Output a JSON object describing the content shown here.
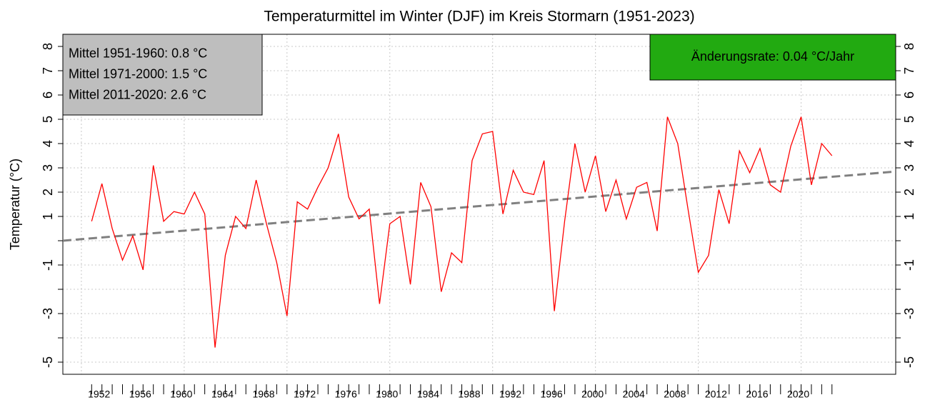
{
  "chart_data": {
    "type": "line",
    "title": "Temperaturmittel im Winter (DJF) im Kreis Stormarn (1951-2023)",
    "y_label": "Temperatur (°C)",
    "x": [
      1951,
      1952,
      1953,
      1954,
      1955,
      1956,
      1957,
      1958,
      1959,
      1960,
      1961,
      1962,
      1963,
      1964,
      1965,
      1966,
      1967,
      1968,
      1969,
      1970,
      1971,
      1972,
      1973,
      1974,
      1975,
      1976,
      1977,
      1978,
      1979,
      1980,
      1981,
      1982,
      1983,
      1984,
      1985,
      1986,
      1987,
      1988,
      1989,
      1990,
      1991,
      1992,
      1993,
      1994,
      1995,
      1996,
      1997,
      1998,
      1999,
      2000,
      2001,
      2002,
      2003,
      2004,
      2005,
      2006,
      2007,
      2008,
      2009,
      2010,
      2011,
      2012,
      2013,
      2014,
      2015,
      2016,
      2017,
      2018,
      2019,
      2020,
      2021,
      2022,
      2023
    ],
    "series": [
      {
        "name": "Temperatur",
        "color": "#ff0000",
        "values": [
          0.8,
          2.35,
          0.5,
          -0.8,
          0.2,
          -1.2,
          3.1,
          0.8,
          1.2,
          1.1,
          2.0,
          1.1,
          -4.4,
          -0.6,
          1.0,
          0.5,
          2.5,
          0.7,
          -0.9,
          -3.1,
          1.6,
          1.3,
          2.2,
          3.0,
          4.4,
          1.8,
          0.9,
          1.3,
          -2.6,
          0.7,
          1.0,
          -1.8,
          2.4,
          1.4,
          -2.1,
          -0.5,
          -0.9,
          3.3,
          4.4,
          4.5,
          1.1,
          2.9,
          2.0,
          1.9,
          3.3,
          -2.9,
          0.8,
          4.0,
          2.0,
          3.5,
          1.2,
          2.5,
          0.9,
          2.2,
          2.4,
          0.4,
          5.1,
          4.0,
          1.3,
          -1.3,
          -0.6,
          2.1,
          0.7,
          3.7,
          2.8,
          3.8,
          2.3,
          2.0,
          3.9,
          5.1,
          2.3,
          4.0,
          3.5
        ]
      }
    ],
    "trend": {
      "color": "#808080",
      "x": [
        1948.2,
        2029.2
      ],
      "values": [
        0.0,
        2.85
      ]
    },
    "xlim": [
      1948.2,
      2029.2
    ],
    "xticks": [
      1952,
      1956,
      1960,
      1964,
      1968,
      1972,
      1976,
      1980,
      1984,
      1988,
      1992,
      1996,
      2000,
      2004,
      2008,
      2012,
      2016,
      2020
    ],
    "minor_xticks": [
      1951,
      1952,
      1953,
      1954,
      1955,
      1956,
      1957,
      1958,
      1959,
      1960,
      1961,
      1962,
      1963,
      1964,
      1965,
      1966,
      1967,
      1968,
      1969,
      1970,
      1971,
      1972,
      1973,
      1974,
      1975,
      1976,
      1977,
      1978,
      1979,
      1980,
      1981,
      1982,
      1983,
      1984,
      1985,
      1986,
      1987,
      1988,
      1989,
      1990,
      1991,
      1992,
      1993,
      1994,
      1995,
      1996,
      1997,
      1998,
      1999,
      2000,
      2001,
      2002,
      2003,
      2004,
      2005,
      2006,
      2007,
      2008,
      2009,
      2010,
      2011,
      2012,
      2013,
      2014,
      2015,
      2016,
      2017,
      2018,
      2019,
      2020,
      2021,
      2022,
      2023
    ],
    "xgrid": [
      1950,
      1960,
      1970,
      1980,
      1990,
      2000,
      2010,
      2020
    ],
    "ylim": [
      -5.5,
      8.5
    ],
    "yticks": [
      -5,
      -3,
      -1,
      1,
      2,
      3,
      4,
      5,
      6,
      7,
      8
    ],
    "minor_yticks": [
      -4,
      -2,
      0
    ],
    "grid": true,
    "annotations": [
      {
        "lines": [
          "Mittel 1951-1960: 0.8 °C",
          "Mittel 1971-2000: 1.5 °C",
          "Mittel 2011-2020: 2.6 °C"
        ],
        "color": "#bebebe"
      },
      {
        "lines": [
          "Änderungsrate: 0.04 °C/Jahr"
        ],
        "color": "#22aa11"
      }
    ]
  }
}
